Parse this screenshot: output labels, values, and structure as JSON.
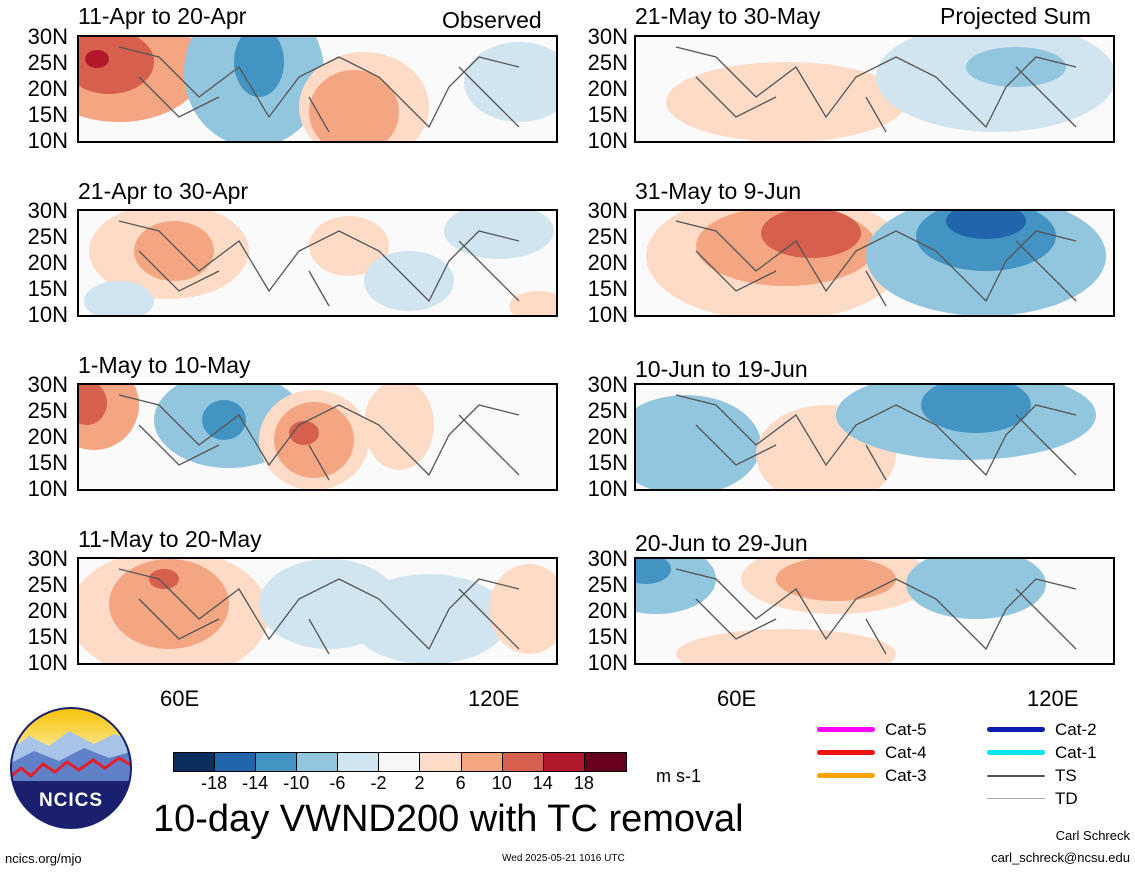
{
  "title": "10-day VWND200 with TC removal",
  "left_column_tag": "Observed",
  "right_column_tag": "Projected Sum",
  "panels_left": [
    {
      "title": "11-Apr to 20-Apr"
    },
    {
      "title": "21-Apr to 30-Apr"
    },
    {
      "title": "1-May to 10-May"
    },
    {
      "title": "11-May to 20-May"
    }
  ],
  "panels_right": [
    {
      "title": "21-May to 30-May"
    },
    {
      "title": "31-May to 9-Jun"
    },
    {
      "title": "10-Jun to 19-Jun"
    },
    {
      "title": "20-Jun to 29-Jun"
    }
  ],
  "lat_labels": [
    "30N",
    "25N",
    "20N",
    "15N",
    "10N"
  ],
  "lon_labels": [
    "60E",
    "120E"
  ],
  "colorbar": {
    "ticks": [
      "-18",
      "-14",
      "-10",
      "-6",
      "-2",
      "2",
      "6",
      "10",
      "14",
      "18"
    ],
    "colors": [
      "#0a2d5e",
      "#2166ac",
      "#4393c3",
      "#92c5de",
      "#d1e5f0",
      "#f7f7f7",
      "#fddbc7",
      "#f4a582",
      "#d6604d",
      "#b2182b",
      "#67001f"
    ],
    "units": "m s-1"
  },
  "legend": [
    {
      "label": "Cat-5",
      "color": "#ff00ff"
    },
    {
      "label": "Cat-4",
      "color": "#ee1111"
    },
    {
      "label": "Cat-3",
      "color": "#ffa500"
    },
    {
      "label": "Cat-2",
      "color": "#0a1fb0"
    },
    {
      "label": "Cat-1",
      "color": "#00e5ee"
    },
    {
      "label": "TS",
      "color": "#555555"
    },
    {
      "label": "TD",
      "color": "#aaaaaa"
    }
  ],
  "logo_text": "NCICS",
  "footer": {
    "site": "ncics.org/mjo",
    "timestamp": "Wed 2025-05-21 1016 UTC",
    "author": "Carl Schreck",
    "email": "carl_schreck@ncsu.edu"
  }
}
